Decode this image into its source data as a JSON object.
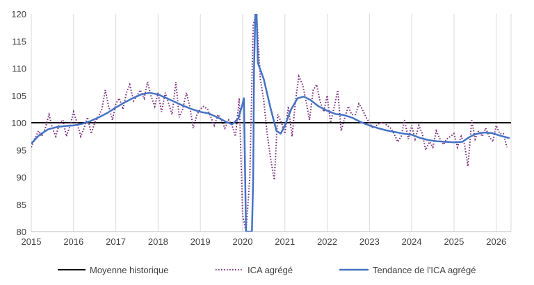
{
  "chart_data": {
    "type": "line",
    "title": "",
    "xlabel": "",
    "ylabel": "",
    "xlim": [
      2015,
      2026.35
    ],
    "ylim": [
      80,
      120
    ],
    "x_ticks": [
      "2015",
      "2016",
      "2017",
      "2018",
      "2019",
      "2020",
      "2021",
      "2022",
      "2023",
      "2024",
      "2025",
      "2026"
    ],
    "y_ticks": [
      "80",
      "85",
      "90",
      "95",
      "100",
      "105",
      "110",
      "115",
      "120"
    ],
    "grid": "vertical",
    "legend_position": "bottom",
    "series": [
      {
        "name": "Moyenne historique",
        "color": "#000000",
        "style": "solid",
        "x": [
          2015,
          2026.35
        ],
        "y": [
          100,
          100
        ]
      },
      {
        "name": "ICA agrégé",
        "color": "#7B2C7E",
        "style": "dotted",
        "x": [
          2015.0,
          2015.08,
          2015.17,
          2015.25,
          2015.33,
          2015.42,
          2015.5,
          2015.58,
          2015.67,
          2015.75,
          2015.83,
          2015.92,
          2016.0,
          2016.08,
          2016.17,
          2016.25,
          2016.33,
          2016.42,
          2016.5,
          2016.58,
          2016.67,
          2016.75,
          2016.83,
          2016.92,
          2017.0,
          2017.08,
          2017.17,
          2017.25,
          2017.33,
          2017.42,
          2017.5,
          2017.58,
          2017.67,
          2017.75,
          2017.83,
          2017.92,
          2018.0,
          2018.08,
          2018.17,
          2018.25,
          2018.33,
          2018.42,
          2018.5,
          2018.58,
          2018.67,
          2018.75,
          2018.83,
          2018.92,
          2019.0,
          2019.08,
          2019.17,
          2019.25,
          2019.33,
          2019.42,
          2019.5,
          2019.58,
          2019.67,
          2019.75,
          2019.83,
          2019.92,
          2020.0,
          2020.08,
          2020.17,
          2020.25,
          2020.33,
          2020.42,
          2020.5,
          2020.58,
          2020.67,
          2020.75,
          2020.83,
          2020.92,
          2021.0,
          2021.08,
          2021.17,
          2021.25,
          2021.33,
          2021.42,
          2021.5,
          2021.58,
          2021.67,
          2021.75,
          2021.83,
          2021.92,
          2022.0,
          2022.08,
          2022.17,
          2022.25,
          2022.33,
          2022.42,
          2022.5,
          2022.58,
          2022.67,
          2022.75,
          2022.83,
          2022.92,
          2023.0,
          2023.08,
          2023.17,
          2023.25,
          2023.33,
          2023.42,
          2023.5,
          2023.58,
          2023.67,
          2023.75,
          2023.83,
          2023.92,
          2024.0,
          2024.08,
          2024.17,
          2024.25,
          2024.33,
          2024.42,
          2024.5,
          2024.58,
          2024.67,
          2024.75,
          2024.83,
          2024.92,
          2025.0,
          2025.08,
          2025.17,
          2025.25,
          2025.33,
          2025.42,
          2025.5,
          2025.58,
          2025.67,
          2025.75,
          2025.83,
          2025.92,
          2026.0,
          2026.08,
          2026.17,
          2026.25
        ],
        "y": [
          95.5,
          97.0,
          98.5,
          97.5,
          99.0,
          101.5,
          99.0,
          97.5,
          100.0,
          100.5,
          97.5,
          99.5,
          102.0,
          100.0,
          97.5,
          99.0,
          101.0,
          98.0,
          100.0,
          101.0,
          102.5,
          106.0,
          103.0,
          100.5,
          103.5,
          104.5,
          102.5,
          105.5,
          107.0,
          104.0,
          105.0,
          106.0,
          104.5,
          107.5,
          105.0,
          103.0,
          105.5,
          102.0,
          105.5,
          103.5,
          101.5,
          107.5,
          101.0,
          102.5,
          105.5,
          103.0,
          99.0,
          101.5,
          102.5,
          103.0,
          102.5,
          101.0,
          99.5,
          101.5,
          100.5,
          99.0,
          100.5,
          99.5,
          97.5,
          104.5,
          83.0,
          80.0,
          90.0,
          118.0,
          120.0,
          108.0,
          104.0,
          98.0,
          93.0,
          89.5,
          101.5,
          100.0,
          98.0,
          103.0,
          97.5,
          104.0,
          108.5,
          107.0,
          104.0,
          100.5,
          106.0,
          107.0,
          104.0,
          102.0,
          105.0,
          100.0,
          103.0,
          106.0,
          98.5,
          101.0,
          103.0,
          101.5,
          101.5,
          103.5,
          102.5,
          101.0,
          100.0,
          99.0,
          99.5,
          100.0,
          100.0,
          99.5,
          99.0,
          98.0,
          96.5,
          97.5,
          100.5,
          97.0,
          99.5,
          97.0,
          99.5,
          98.0,
          95.0,
          96.5,
          95.5,
          98.5,
          97.0,
          96.0,
          97.0,
          97.5,
          98.0,
          95.5,
          97.5,
          96.0,
          92.0,
          100.5,
          97.0,
          98.5,
          97.5,
          99.0,
          97.5,
          96.5,
          99.5,
          98.0,
          98.0,
          95.5
        ]
      },
      {
        "name": "Tendance de l'ICA agrégé",
        "color": "#4472C4",
        "style": "solid",
        "x": [
          2015.0,
          2015.2,
          2015.4,
          2015.6,
          2015.8,
          2016.0,
          2016.2,
          2016.4,
          2016.6,
          2016.8,
          2017.0,
          2017.2,
          2017.4,
          2017.6,
          2017.8,
          2018.0,
          2018.2,
          2018.4,
          2018.6,
          2018.8,
          2019.0,
          2019.2,
          2019.4,
          2019.6,
          2019.75,
          2019.9,
          2020.0,
          2020.03,
          2020.06,
          2020.08,
          2020.22,
          2020.25,
          2020.27,
          2020.3,
          2020.33,
          2020.36,
          2020.5,
          2020.65,
          2020.8,
          2020.9,
          2021.0,
          2021.15,
          2021.3,
          2021.45,
          2021.6,
          2021.8,
          2022.0,
          2022.2,
          2022.4,
          2022.6,
          2022.8,
          2023.0,
          2023.2,
          2023.4,
          2023.6,
          2023.8,
          2024.0,
          2024.2,
          2024.4,
          2024.6,
          2024.8,
          2025.0,
          2025.2,
          2025.35,
          2025.5,
          2025.7,
          2025.9,
          2026.1,
          2026.3
        ],
        "y": [
          96.2,
          97.8,
          98.8,
          99.2,
          99.4,
          99.5,
          99.8,
          100.3,
          101.0,
          101.8,
          102.8,
          103.7,
          104.5,
          105.2,
          105.5,
          105.2,
          104.5,
          103.8,
          103.1,
          102.5,
          102.0,
          101.7,
          101.0,
          100.2,
          99.7,
          100.8,
          103.5,
          104.5,
          90.0,
          80.0,
          80.0,
          90.0,
          110.0,
          120.0,
          120.0,
          111.0,
          108.0,
          103.0,
          98.5,
          98.0,
          99.5,
          102.5,
          104.5,
          104.8,
          104.2,
          103.0,
          102.2,
          101.6,
          101.4,
          100.9,
          100.1,
          99.5,
          99.0,
          98.6,
          98.3,
          98.0,
          97.8,
          97.2,
          96.8,
          96.6,
          96.5,
          96.4,
          96.5,
          97.3,
          97.9,
          98.2,
          98.1,
          97.6,
          97.2
        ]
      }
    ]
  }
}
